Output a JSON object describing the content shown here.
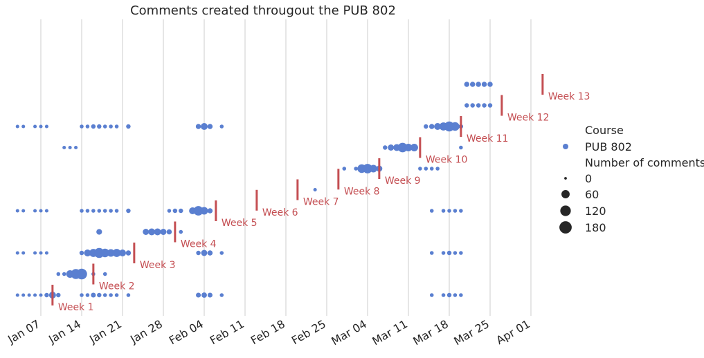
{
  "chart_data": {
    "type": "scatter",
    "title": "Comments created througout the PUB 802",
    "xlabel": "",
    "ylabel": "",
    "x_axis": {
      "kind": "date",
      "range": [
        "2019-01-03",
        "2019-04-06"
      ],
      "ticks": [
        "Jan 07",
        "Jan 14",
        "Jan 21",
        "Jan 28",
        "Feb 04",
        "Feb 11",
        "Feb 18",
        "Feb 25",
        "Mar 04",
        "Mar 11",
        "Mar 18",
        "Mar 25",
        "Apr 01"
      ],
      "tick_dates": [
        "2019-01-07",
        "2019-01-14",
        "2019-01-21",
        "2019-01-28",
        "2019-02-04",
        "2019-02-11",
        "2019-02-18",
        "2019-02-25",
        "2019-03-04",
        "2019-03-11",
        "2019-03-18",
        "2019-03-25",
        "2019-04-01"
      ]
    },
    "vertical_grid": true,
    "row_labels_shown": false,
    "legend": {
      "placement": "right",
      "course_title": "Course",
      "course": "PUB 802",
      "size_title": "Number of comments",
      "size_entries": [
        "0",
        "60",
        "120",
        "180"
      ],
      "size_values": [
        0,
        60,
        120,
        180
      ]
    },
    "colors": {
      "points": "#5a7fd0",
      "weeks": "#c44e52",
      "grid": "#cccccc",
      "text": "#262626"
    },
    "series": [
      {
        "row": 1,
        "points": [
          [
            "2019-01-03",
            1
          ],
          [
            "2019-01-04",
            1
          ],
          [
            "2019-01-05",
            1
          ],
          [
            "2019-01-06",
            1
          ],
          [
            "2019-01-07",
            1
          ],
          [
            "2019-01-08",
            5
          ],
          [
            "2019-01-09",
            30
          ],
          [
            "2019-01-10",
            5
          ],
          [
            "2019-01-14",
            2
          ],
          [
            "2019-01-15",
            2
          ],
          [
            "2019-01-16",
            8
          ],
          [
            "2019-01-17",
            5
          ],
          [
            "2019-01-18",
            2
          ],
          [
            "2019-01-19",
            2
          ],
          [
            "2019-01-20",
            2
          ],
          [
            "2019-01-22",
            2
          ],
          [
            "2019-02-03",
            8
          ],
          [
            "2019-02-04",
            12
          ],
          [
            "2019-02-05",
            8
          ],
          [
            "2019-02-07",
            2
          ],
          [
            "2019-03-15",
            2
          ],
          [
            "2019-03-17",
            2
          ],
          [
            "2019-03-18",
            5
          ],
          [
            "2019-03-19",
            2
          ],
          [
            "2019-03-20",
            2
          ]
        ]
      },
      {
        "row": 2,
        "points": [
          [
            "2019-01-10",
            2
          ],
          [
            "2019-01-11",
            2
          ],
          [
            "2019-01-12",
            40
          ],
          [
            "2019-01-13",
            90
          ],
          [
            "2019-01-14",
            110
          ],
          [
            "2019-01-16",
            2
          ],
          [
            "2019-01-18",
            2
          ]
        ]
      },
      {
        "row": 3,
        "points": [
          [
            "2019-01-03",
            1
          ],
          [
            "2019-01-04",
            1
          ],
          [
            "2019-01-06",
            1
          ],
          [
            "2019-01-07",
            1
          ],
          [
            "2019-01-08",
            1
          ],
          [
            "2019-01-14",
            5
          ],
          [
            "2019-01-15",
            30
          ],
          [
            "2019-01-16",
            50
          ],
          [
            "2019-01-17",
            90
          ],
          [
            "2019-01-18",
            60
          ],
          [
            "2019-01-19",
            40
          ],
          [
            "2019-01-20",
            50
          ],
          [
            "2019-01-21",
            30
          ],
          [
            "2019-01-22",
            10
          ],
          [
            "2019-02-03",
            5
          ],
          [
            "2019-02-04",
            20
          ],
          [
            "2019-02-05",
            10
          ],
          [
            "2019-02-07",
            2
          ],
          [
            "2019-03-15",
            2
          ],
          [
            "2019-03-17",
            2
          ],
          [
            "2019-03-18",
            5
          ],
          [
            "2019-03-19",
            2
          ],
          [
            "2019-03-20",
            2
          ]
        ]
      },
      {
        "row": 4,
        "points": [
          [
            "2019-01-17",
            15
          ],
          [
            "2019-01-25",
            20
          ],
          [
            "2019-01-26",
            30
          ],
          [
            "2019-01-27",
            30
          ],
          [
            "2019-01-28",
            20
          ],
          [
            "2019-01-29",
            10
          ],
          [
            "2019-01-31",
            2
          ]
        ]
      },
      {
        "row": 5,
        "points": [
          [
            "2019-01-03",
            1
          ],
          [
            "2019-01-04",
            1
          ],
          [
            "2019-01-06",
            1
          ],
          [
            "2019-01-07",
            1
          ],
          [
            "2019-01-08",
            1
          ],
          [
            "2019-01-14",
            2
          ],
          [
            "2019-01-15",
            2
          ],
          [
            "2019-01-16",
            2
          ],
          [
            "2019-01-17",
            2
          ],
          [
            "2019-01-18",
            2
          ],
          [
            "2019-01-19",
            2
          ],
          [
            "2019-01-20",
            2
          ],
          [
            "2019-01-22",
            5
          ],
          [
            "2019-01-29",
            2
          ],
          [
            "2019-01-30",
            5
          ],
          [
            "2019-01-31",
            5
          ],
          [
            "2019-02-02",
            30
          ],
          [
            "2019-02-03",
            80
          ],
          [
            "2019-02-04",
            40
          ],
          [
            "2019-02-05",
            10
          ],
          [
            "2019-03-15",
            2
          ],
          [
            "2019-03-17",
            2
          ],
          [
            "2019-03-18",
            2
          ],
          [
            "2019-03-19",
            2
          ],
          [
            "2019-03-20",
            2
          ]
        ]
      },
      {
        "row": 6,
        "points": [
          [
            "2019-02-23",
            1
          ]
        ]
      },
      {
        "row": 7,
        "points": [
          [
            "2019-02-28",
            2
          ],
          [
            "2019-03-02",
            2
          ],
          [
            "2019-03-03",
            60
          ],
          [
            "2019-03-04",
            80
          ],
          [
            "2019-03-05",
            40
          ],
          [
            "2019-03-06",
            20
          ],
          [
            "2019-03-13",
            2
          ],
          [
            "2019-03-14",
            2
          ],
          [
            "2019-03-15",
            2
          ],
          [
            "2019-03-16",
            2
          ]
        ]
      },
      {
        "row": 8,
        "points": [
          [
            "2019-01-11",
            1
          ],
          [
            "2019-01-12",
            1
          ],
          [
            "2019-01-13",
            1
          ],
          [
            "2019-03-07",
            5
          ],
          [
            "2019-03-08",
            20
          ],
          [
            "2019-03-09",
            30
          ],
          [
            "2019-03-10",
            80
          ],
          [
            "2019-03-11",
            40
          ],
          [
            "2019-03-12",
            40
          ],
          [
            "2019-03-20",
            2
          ]
        ]
      },
      {
        "row": 9,
        "points": [
          [
            "2019-01-03",
            1
          ],
          [
            "2019-01-04",
            1
          ],
          [
            "2019-01-06",
            1
          ],
          [
            "2019-01-07",
            1
          ],
          [
            "2019-01-08",
            1
          ],
          [
            "2019-01-14",
            2
          ],
          [
            "2019-01-15",
            2
          ],
          [
            "2019-01-16",
            5
          ],
          [
            "2019-01-17",
            5
          ],
          [
            "2019-01-18",
            2
          ],
          [
            "2019-01-19",
            2
          ],
          [
            "2019-01-20",
            2
          ],
          [
            "2019-01-22",
            5
          ],
          [
            "2019-02-03",
            10
          ],
          [
            "2019-02-04",
            30
          ],
          [
            "2019-02-05",
            10
          ],
          [
            "2019-02-07",
            2
          ],
          [
            "2019-03-14",
            5
          ],
          [
            "2019-03-15",
            10
          ],
          [
            "2019-03-16",
            30
          ],
          [
            "2019-03-17",
            50
          ],
          [
            "2019-03-18",
            90
          ],
          [
            "2019-03-19",
            60
          ],
          [
            "2019-03-20",
            5
          ]
        ]
      },
      {
        "row": 10,
        "points": [
          [
            "2019-03-21",
            5
          ],
          [
            "2019-03-22",
            5
          ],
          [
            "2019-03-23",
            5
          ],
          [
            "2019-03-24",
            5
          ],
          [
            "2019-03-25",
            5
          ]
        ]
      },
      {
        "row": 11,
        "points": [
          [
            "2019-03-21",
            10
          ],
          [
            "2019-03-22",
            10
          ],
          [
            "2019-03-23",
            10
          ],
          [
            "2019-03-24",
            10
          ],
          [
            "2019-03-25",
            10
          ]
        ]
      }
    ],
    "week_markers": [
      {
        "label": "Week 1",
        "date": "2019-01-09",
        "row": 1
      },
      {
        "label": "Week 2",
        "date": "2019-01-16",
        "row": 2
      },
      {
        "label": "Week 3",
        "date": "2019-01-23",
        "row": 3
      },
      {
        "label": "Week 4",
        "date": "2019-01-30",
        "row": 4
      },
      {
        "label": "Week 5",
        "date": "2019-02-06",
        "row": 5
      },
      {
        "label": "Week 6",
        "date": "2019-02-13",
        "row": 5.5
      },
      {
        "label": "Week 7",
        "date": "2019-02-20",
        "row": 6
      },
      {
        "label": "Week 8",
        "date": "2019-02-27",
        "row": 6.5
      },
      {
        "label": "Week 9",
        "date": "2019-03-06",
        "row": 7
      },
      {
        "label": "Week 10",
        "date": "2019-03-13",
        "row": 8
      },
      {
        "label": "Week 11",
        "date": "2019-03-20",
        "row": 9
      },
      {
        "label": "Week 12",
        "date": "2019-03-27",
        "row": 10
      },
      {
        "label": "Week 13",
        "date": "2019-04-03",
        "row": 11
      }
    ]
  }
}
